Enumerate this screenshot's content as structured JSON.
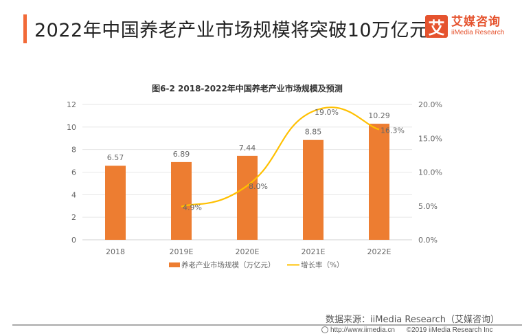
{
  "header": {
    "title": "2022年中国养老产业市场规模将突破10万亿元",
    "accent_color": "#f26a38"
  },
  "logo": {
    "mark": "艾",
    "name_cn": "艾媒咨询",
    "name_en": "iiMedia Research",
    "color": "#e5532e"
  },
  "chart_data": {
    "type": "bar",
    "title": "图6-2 2018-2022年中国养老产业市场规模及预测",
    "categories": [
      "2018",
      "2019E",
      "2020E",
      "2021E",
      "2022E"
    ],
    "series": [
      {
        "name": "养老产业市场规模（万亿元）",
        "type": "bar",
        "axis": "left",
        "color": "#ed7d31",
        "values": [
          6.57,
          6.89,
          7.44,
          8.85,
          10.29
        ],
        "labels": [
          "6.57",
          "6.89",
          "7.44",
          "8.85",
          "10.29"
        ]
      },
      {
        "name": "增长率（%）",
        "type": "line",
        "axis": "right",
        "smooth": true,
        "color": "#ffc000",
        "values": [
          null,
          4.9,
          8.0,
          19.0,
          16.3
        ],
        "labels": [
          null,
          "4.9%",
          "8.0%",
          "19.0%",
          "16.3%"
        ]
      }
    ],
    "y_left": {
      "min": 0,
      "max": 12,
      "ticks": [
        0,
        2,
        4,
        6,
        8,
        10,
        12
      ],
      "tick_labels": [
        "0",
        "2",
        "4",
        "6",
        "8",
        "10",
        "12"
      ]
    },
    "y_right": {
      "min": 0,
      "max": 20,
      "ticks": [
        0,
        5,
        10,
        15,
        20
      ],
      "tick_labels": [
        "0.0%",
        "5.0%",
        "10.0%",
        "15.0%",
        "20.0%"
      ]
    },
    "xlabel": "",
    "ylabel": "",
    "grid": true,
    "legend": "bottom"
  },
  "source": "数据来源：iiMedia Research（艾媒咨询）",
  "footer": {
    "url": "http://www.iimedia.cn",
    "copyright": "©2019  iiMedia Research  Inc"
  }
}
